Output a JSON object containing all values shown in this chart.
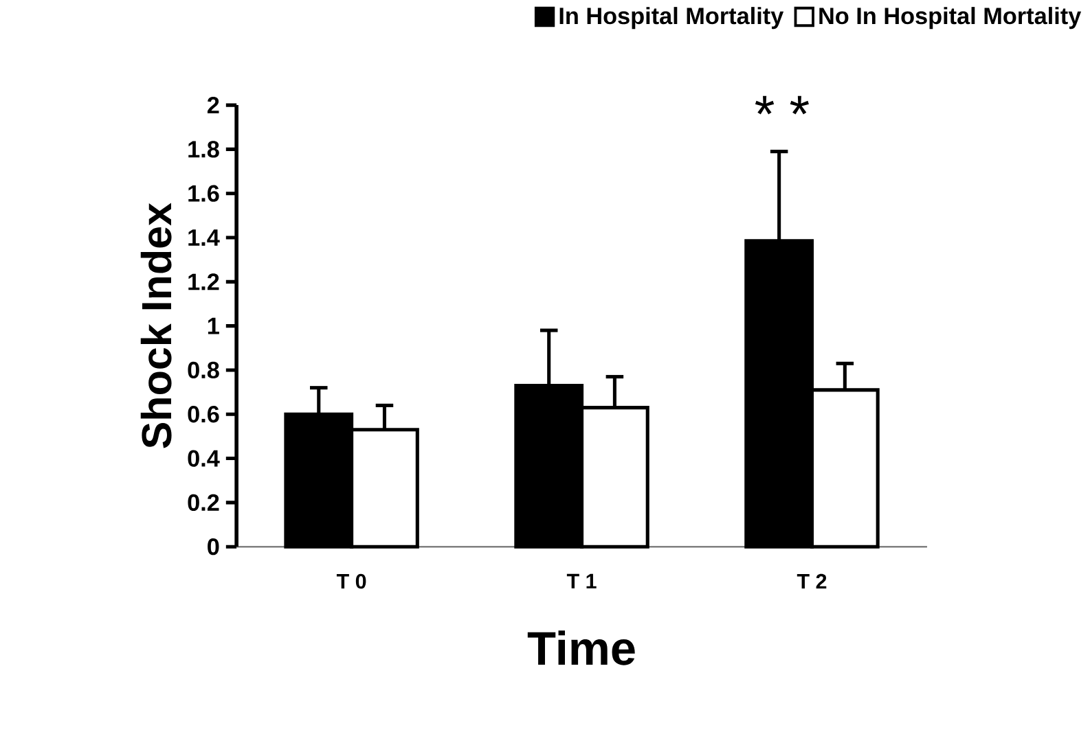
{
  "chart_data": {
    "type": "bar",
    "xlabel": "Time",
    "ylabel": "Shock Index",
    "categories": [
      "T 0",
      "T 1",
      "T 2"
    ],
    "series": [
      {
        "name": "In Hospital Mortality",
        "color": "#000000",
        "values": [
          0.6,
          0.73,
          1.385
        ],
        "errors": [
          [
            0.6,
            0.72
          ],
          [
            0.73,
            0.98
          ],
          [
            1.385,
            1.79
          ]
        ]
      },
      {
        "name": "No In Hospital Mortality",
        "color": "#ffffff",
        "values": [
          0.53,
          0.63,
          0.71
        ],
        "errors": [
          [
            0.53,
            0.64
          ],
          [
            0.63,
            0.77
          ],
          [
            0.71,
            0.83
          ]
        ]
      }
    ],
    "ylim": [
      0,
      2
    ],
    "yticks": [
      0,
      0.2,
      0.4,
      0.6,
      0.8,
      1,
      1.2,
      1.4,
      1.6,
      1.8,
      2
    ],
    "annotations": [
      "* *"
    ],
    "legend": "top right",
    "grid": false
  }
}
